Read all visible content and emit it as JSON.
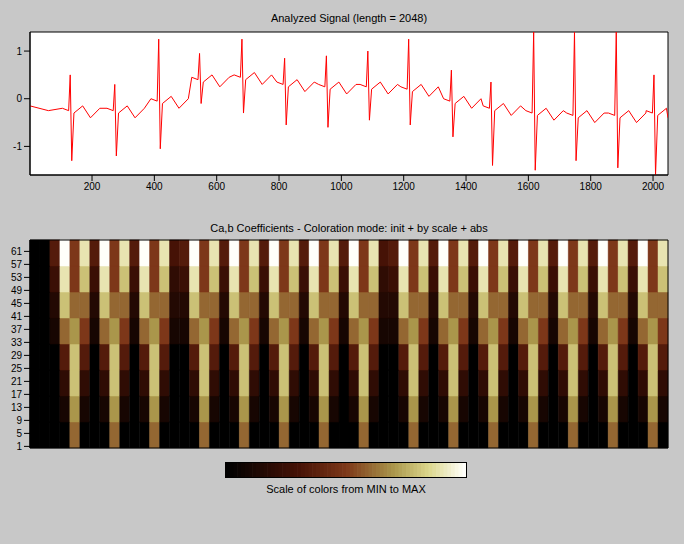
{
  "chart_data": [
    {
      "type": "line",
      "title": "Analyzed Signal (length = 2048)",
      "color": "#ff0000",
      "xlim": [
        1,
        2048
      ],
      "xticks": [
        200,
        400,
        600,
        800,
        1000,
        1200,
        1400,
        1600,
        1800,
        2000
      ],
      "ylim": [
        -1.6,
        1.4
      ],
      "yticks": [
        -1,
        0,
        1
      ],
      "x": [
        1,
        60,
        105,
        125,
        130,
        135,
        142,
        170,
        195,
        225,
        248,
        268,
        273,
        278,
        285,
        313,
        338,
        368,
        389,
        409,
        414,
        419,
        426,
        454,
        479,
        509,
        520,
        540,
        545,
        550,
        557,
        585,
        610,
        640,
        656,
        676,
        681,
        686,
        693,
        721,
        746,
        776,
        793,
        813,
        818,
        823,
        830,
        858,
        883,
        913,
        927,
        947,
        952,
        957,
        964,
        992,
        1017,
        1047,
        1060,
        1080,
        1085,
        1090,
        1097,
        1125,
        1150,
        1180,
        1191,
        1211,
        1216,
        1221,
        1228,
        1256,
        1281,
        1311,
        1328,
        1348,
        1353,
        1358,
        1365,
        1393,
        1418,
        1448,
        1455,
        1475,
        1480,
        1485,
        1492,
        1520,
        1545,
        1575,
        1592,
        1612,
        1617,
        1622,
        1629,
        1657,
        1682,
        1712,
        1723,
        1743,
        1748,
        1753,
        1760,
        1788,
        1813,
        1843,
        1857,
        1877,
        1882,
        1887,
        1894,
        1922,
        1947,
        1977,
        1978,
        1998,
        2003,
        2008,
        2015,
        2043,
        2048
      ],
      "values": [
        -0.15,
        -0.25,
        -0.2,
        -0.25,
        0.5,
        -1.3,
        -0.3,
        -0.15,
        -0.4,
        -0.2,
        -0.2,
        -0.25,
        0.3,
        -1.2,
        -0.3,
        -0.15,
        -0.4,
        -0.2,
        0,
        -0.05,
        1.25,
        -1.05,
        -0.1,
        0.05,
        -0.2,
        0,
        0.45,
        0.4,
        0.95,
        -0.1,
        0.35,
        0.5,
        0.25,
        0.45,
        0.5,
        0.45,
        1.25,
        -0.3,
        0.4,
        0.55,
        0.3,
        0.5,
        0.35,
        0.3,
        0.85,
        -0.55,
        0.25,
        0.4,
        0.15,
        0.35,
        0.3,
        0.25,
        0.9,
        -0.6,
        0.2,
        0.35,
        0.1,
        0.3,
        0.3,
        0.25,
        1,
        -0.45,
        0.2,
        0.35,
        0.1,
        0.3,
        0.25,
        0.2,
        1.25,
        -0.55,
        0.15,
        0.3,
        0.05,
        0.25,
        0,
        -0.05,
        0.6,
        -0.8,
        -0.1,
        0.05,
        -0.2,
        0,
        -0.15,
        -0.2,
        0.35,
        -1.4,
        -0.25,
        -0.1,
        -0.35,
        -0.15,
        -0.25,
        -0.3,
        1.4,
        -1.5,
        -0.35,
        -0.2,
        -0.45,
        -0.25,
        -0.3,
        -0.35,
        1.4,
        -1.3,
        -0.4,
        -0.25,
        -0.5,
        -0.3,
        -0.3,
        -0.35,
        1.4,
        -1.45,
        -0.4,
        -0.25,
        -0.5,
        -0.3,
        -0.25,
        -0.3,
        0.5,
        -1.6,
        -0.35,
        -0.2,
        -0.4
      ]
    },
    {
      "type": "heatmap",
      "title": "Ca,b Coefficients - Coloration mode: init + by scale + abs",
      "xlim": [
        1,
        2048
      ],
      "ylim": [
        0.5,
        64.5
      ],
      "yticks": [
        1,
        5,
        9,
        13,
        17,
        21,
        25,
        29,
        33,
        37,
        41,
        45,
        49,
        53,
        57,
        61
      ],
      "tick_labels": "y",
      "row_edges": [
        0.5,
        8.5,
        16.5,
        24.5,
        32.5,
        40.5,
        48.5,
        56.5,
        64.5
      ],
      "cells": [
        [
          0,
          0,
          0,
          0,
          0.6,
          0,
          0,
          0,
          0.6,
          0,
          0,
          0,
          0.6,
          0,
          0,
          0,
          0,
          0.6,
          0,
          0,
          0,
          0.6,
          0,
          0,
          0,
          0.6,
          0,
          0,
          0,
          0.6,
          0,
          0,
          0,
          0.6,
          0,
          0,
          0,
          0,
          0.6,
          0,
          0,
          0,
          0.6,
          0,
          0,
          0,
          0.6,
          0,
          0,
          0,
          0.6,
          0,
          0,
          0,
          0.6,
          0,
          0,
          0,
          0.6,
          0,
          0,
          0,
          0.6,
          0
        ],
        [
          0,
          0,
          0,
          0.1,
          0.7,
          0.1,
          0,
          0.1,
          0.7,
          0.1,
          0,
          0.1,
          0.7,
          0.1,
          0,
          0,
          0.1,
          0.7,
          0.1,
          0,
          0.1,
          0.7,
          0.1,
          0,
          0.1,
          0.7,
          0.1,
          0,
          0.1,
          0.7,
          0.1,
          0,
          0.1,
          0.7,
          0.1,
          0,
          0,
          0.1,
          0.7,
          0.1,
          0,
          0.1,
          0.7,
          0.1,
          0,
          0.1,
          0.7,
          0.1,
          0,
          0.1,
          0.7,
          0.1,
          0,
          0.1,
          0.7,
          0.1,
          0,
          0.1,
          0.7,
          0.1,
          0,
          0.1,
          0.7,
          0.1
        ],
        [
          0,
          0,
          0,
          0.2,
          0.8,
          0.2,
          0,
          0.2,
          0.8,
          0.2,
          0,
          0.2,
          0.8,
          0.2,
          0,
          0,
          0.2,
          0.8,
          0.2,
          0,
          0.2,
          0.8,
          0.2,
          0,
          0.2,
          0.8,
          0.2,
          0,
          0.2,
          0.8,
          0.2,
          0,
          0.2,
          0.8,
          0.2,
          0,
          0,
          0.2,
          0.8,
          0.2,
          0,
          0.2,
          0.8,
          0.2,
          0,
          0.2,
          0.8,
          0.2,
          0,
          0.2,
          0.8,
          0.2,
          0,
          0.2,
          0.8,
          0.2,
          0,
          0.2,
          0.8,
          0.2,
          0,
          0.2,
          0.8,
          0.2
        ],
        [
          0,
          0,
          0,
          0.35,
          0.8,
          0.35,
          0,
          0.35,
          0.8,
          0.35,
          0,
          0.35,
          0.8,
          0.35,
          0,
          0,
          0.35,
          0.8,
          0.35,
          0,
          0.35,
          0.8,
          0.35,
          0,
          0.35,
          0.8,
          0.35,
          0,
          0.35,
          0.8,
          0.35,
          0,
          0.35,
          0.8,
          0.35,
          0,
          0,
          0.35,
          0.8,
          0.35,
          0,
          0.35,
          0.8,
          0.35,
          0,
          0.35,
          0.8,
          0.35,
          0,
          0.35,
          0.8,
          0.35,
          0,
          0.35,
          0.8,
          0.35,
          0,
          0.35,
          0.8,
          0.35,
          0,
          0.35,
          0.8,
          0.35
        ],
        [
          0,
          0,
          0.1,
          0.6,
          0.7,
          0.5,
          0.1,
          0.6,
          0.7,
          0.5,
          0.1,
          0.6,
          0.7,
          0.5,
          0.1,
          0.1,
          0.6,
          0.7,
          0.5,
          0.1,
          0.6,
          0.7,
          0.5,
          0.1,
          0.6,
          0.7,
          0.5,
          0.1,
          0.6,
          0.7,
          0.5,
          0.1,
          0.6,
          0.7,
          0.5,
          0.1,
          0.1,
          0.6,
          0.7,
          0.5,
          0.1,
          0.6,
          0.7,
          0.5,
          0.1,
          0.6,
          0.7,
          0.5,
          0.1,
          0.6,
          0.7,
          0.5,
          0.1,
          0.6,
          0.7,
          0.5,
          0.1,
          0.6,
          0.7,
          0.5,
          0.1,
          0.6,
          0.7,
          0.5
        ],
        [
          0,
          0,
          0.15,
          0.8,
          0.6,
          0.6,
          0.15,
          0.8,
          0.6,
          0.6,
          0.15,
          0.8,
          0.6,
          0.6,
          0.15,
          0.15,
          0.8,
          0.6,
          0.6,
          0.15,
          0.8,
          0.6,
          0.6,
          0.15,
          0.8,
          0.6,
          0.6,
          0.15,
          0.8,
          0.6,
          0.6,
          0.15,
          0.8,
          0.6,
          0.6,
          0.15,
          0.15,
          0.8,
          0.6,
          0.6,
          0.15,
          0.8,
          0.6,
          0.6,
          0.15,
          0.8,
          0.6,
          0.6,
          0.15,
          0.8,
          0.6,
          0.6,
          0.15,
          0.8,
          0.6,
          0.6,
          0.15,
          0.8,
          0.6,
          0.6,
          0.15,
          0.8,
          0.6,
          0.6
        ],
        [
          0,
          0,
          0.25,
          0.9,
          0.5,
          0.8,
          0.25,
          0.9,
          0.5,
          0.8,
          0.25,
          0.9,
          0.5,
          0.8,
          0.2,
          0.25,
          0.9,
          0.5,
          0.8,
          0.25,
          0.9,
          0.5,
          0.8,
          0.25,
          0.9,
          0.5,
          0.8,
          0.25,
          0.9,
          0.5,
          0.8,
          0.25,
          0.9,
          0.5,
          0.8,
          0.2,
          0.25,
          0.9,
          0.5,
          0.8,
          0.25,
          0.9,
          0.5,
          0.8,
          0.25,
          0.9,
          0.5,
          0.8,
          0.25,
          0.9,
          0.5,
          0.8,
          0.25,
          0.9,
          0.5,
          0.8,
          0.25,
          0.9,
          0.5,
          0.8,
          0.25,
          0.9,
          0.5,
          0.8
        ],
        [
          0,
          0,
          0.35,
          1,
          0.5,
          0.9,
          0.35,
          1,
          0.5,
          0.9,
          0.35,
          1,
          0.5,
          0.9,
          0.3,
          0.35,
          1,
          0.5,
          0.9,
          0.35,
          1,
          0.5,
          0.9,
          0.35,
          1,
          0.5,
          0.9,
          0.35,
          1,
          0.5,
          0.9,
          0.35,
          1,
          0.5,
          0.9,
          0.3,
          0.35,
          1,
          0.5,
          0.9,
          0.35,
          1,
          0.5,
          0.9,
          0.35,
          1,
          0.5,
          0.9,
          0.35,
          1,
          0.5,
          0.9,
          0.35,
          1,
          0.5,
          0.9,
          0.35,
          1,
          0.5,
          0.9,
          0.35,
          1,
          0.5,
          0.9
        ]
      ],
      "colorbar": {
        "range": [
          0,
          1
        ],
        "label": "Scale of colors from MIN to MAX"
      }
    }
  ]
}
